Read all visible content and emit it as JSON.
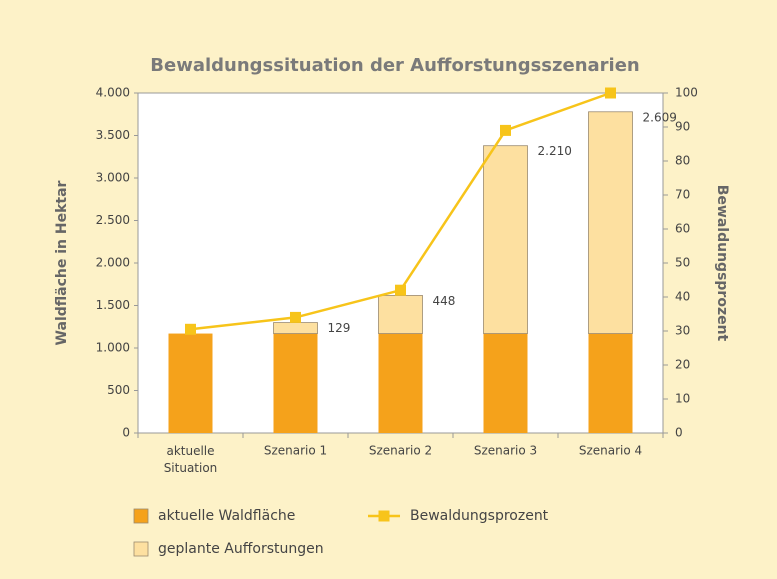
{
  "chart_data": {
    "type": "bar",
    "stacked": true,
    "title": "Bewaldungssituation der Aufforstungsszenarien",
    "y_label": "Waldfläche in Hektar",
    "y2_label": "Bewaldungsprozent",
    "categories": [
      "aktuelle\nSituation",
      "Szenario 1",
      "Szenario 2",
      "Szenario 3",
      "Szenario 4"
    ],
    "series": [
      {
        "name": "aktuelle Waldfläche",
        "type": "bar",
        "color": "#f5a21b",
        "values": [
          1170,
          1170,
          1170,
          1170,
          1170
        ]
      },
      {
        "name": "geplante Aufforstungen",
        "type": "bar",
        "color": "#fde0a0",
        "values": [
          0,
          129,
          448,
          2210,
          2609
        ],
        "value_labels": [
          null,
          "129",
          "448",
          "2.210",
          "2.609"
        ]
      },
      {
        "name": "Bewaldungsprozent",
        "type": "line",
        "axis": "y2",
        "color": "#f7c41a",
        "values": [
          30.5,
          34,
          42,
          89,
          100
        ]
      }
    ],
    "ylim": [
      0,
      4000
    ],
    "yticks": [
      0,
      500,
      {
        "value": 1000,
        "label": "1.000"
      },
      {
        "value": 1500,
        "label": "1.500"
      },
      {
        "value": 2000,
        "label": "2.000"
      },
      {
        "value": 2500,
        "label": "2.500"
      },
      {
        "value": 3000,
        "label": "3.000"
      },
      {
        "value": 3500,
        "label": "3.500"
      },
      {
        "value": 4000,
        "label": "4.000"
      }
    ],
    "y2lim": [
      0,
      100
    ],
    "y2ticks": [
      0,
      10,
      20,
      30,
      40,
      50,
      60,
      70,
      80,
      90,
      100
    ],
    "grid": false
  }
}
